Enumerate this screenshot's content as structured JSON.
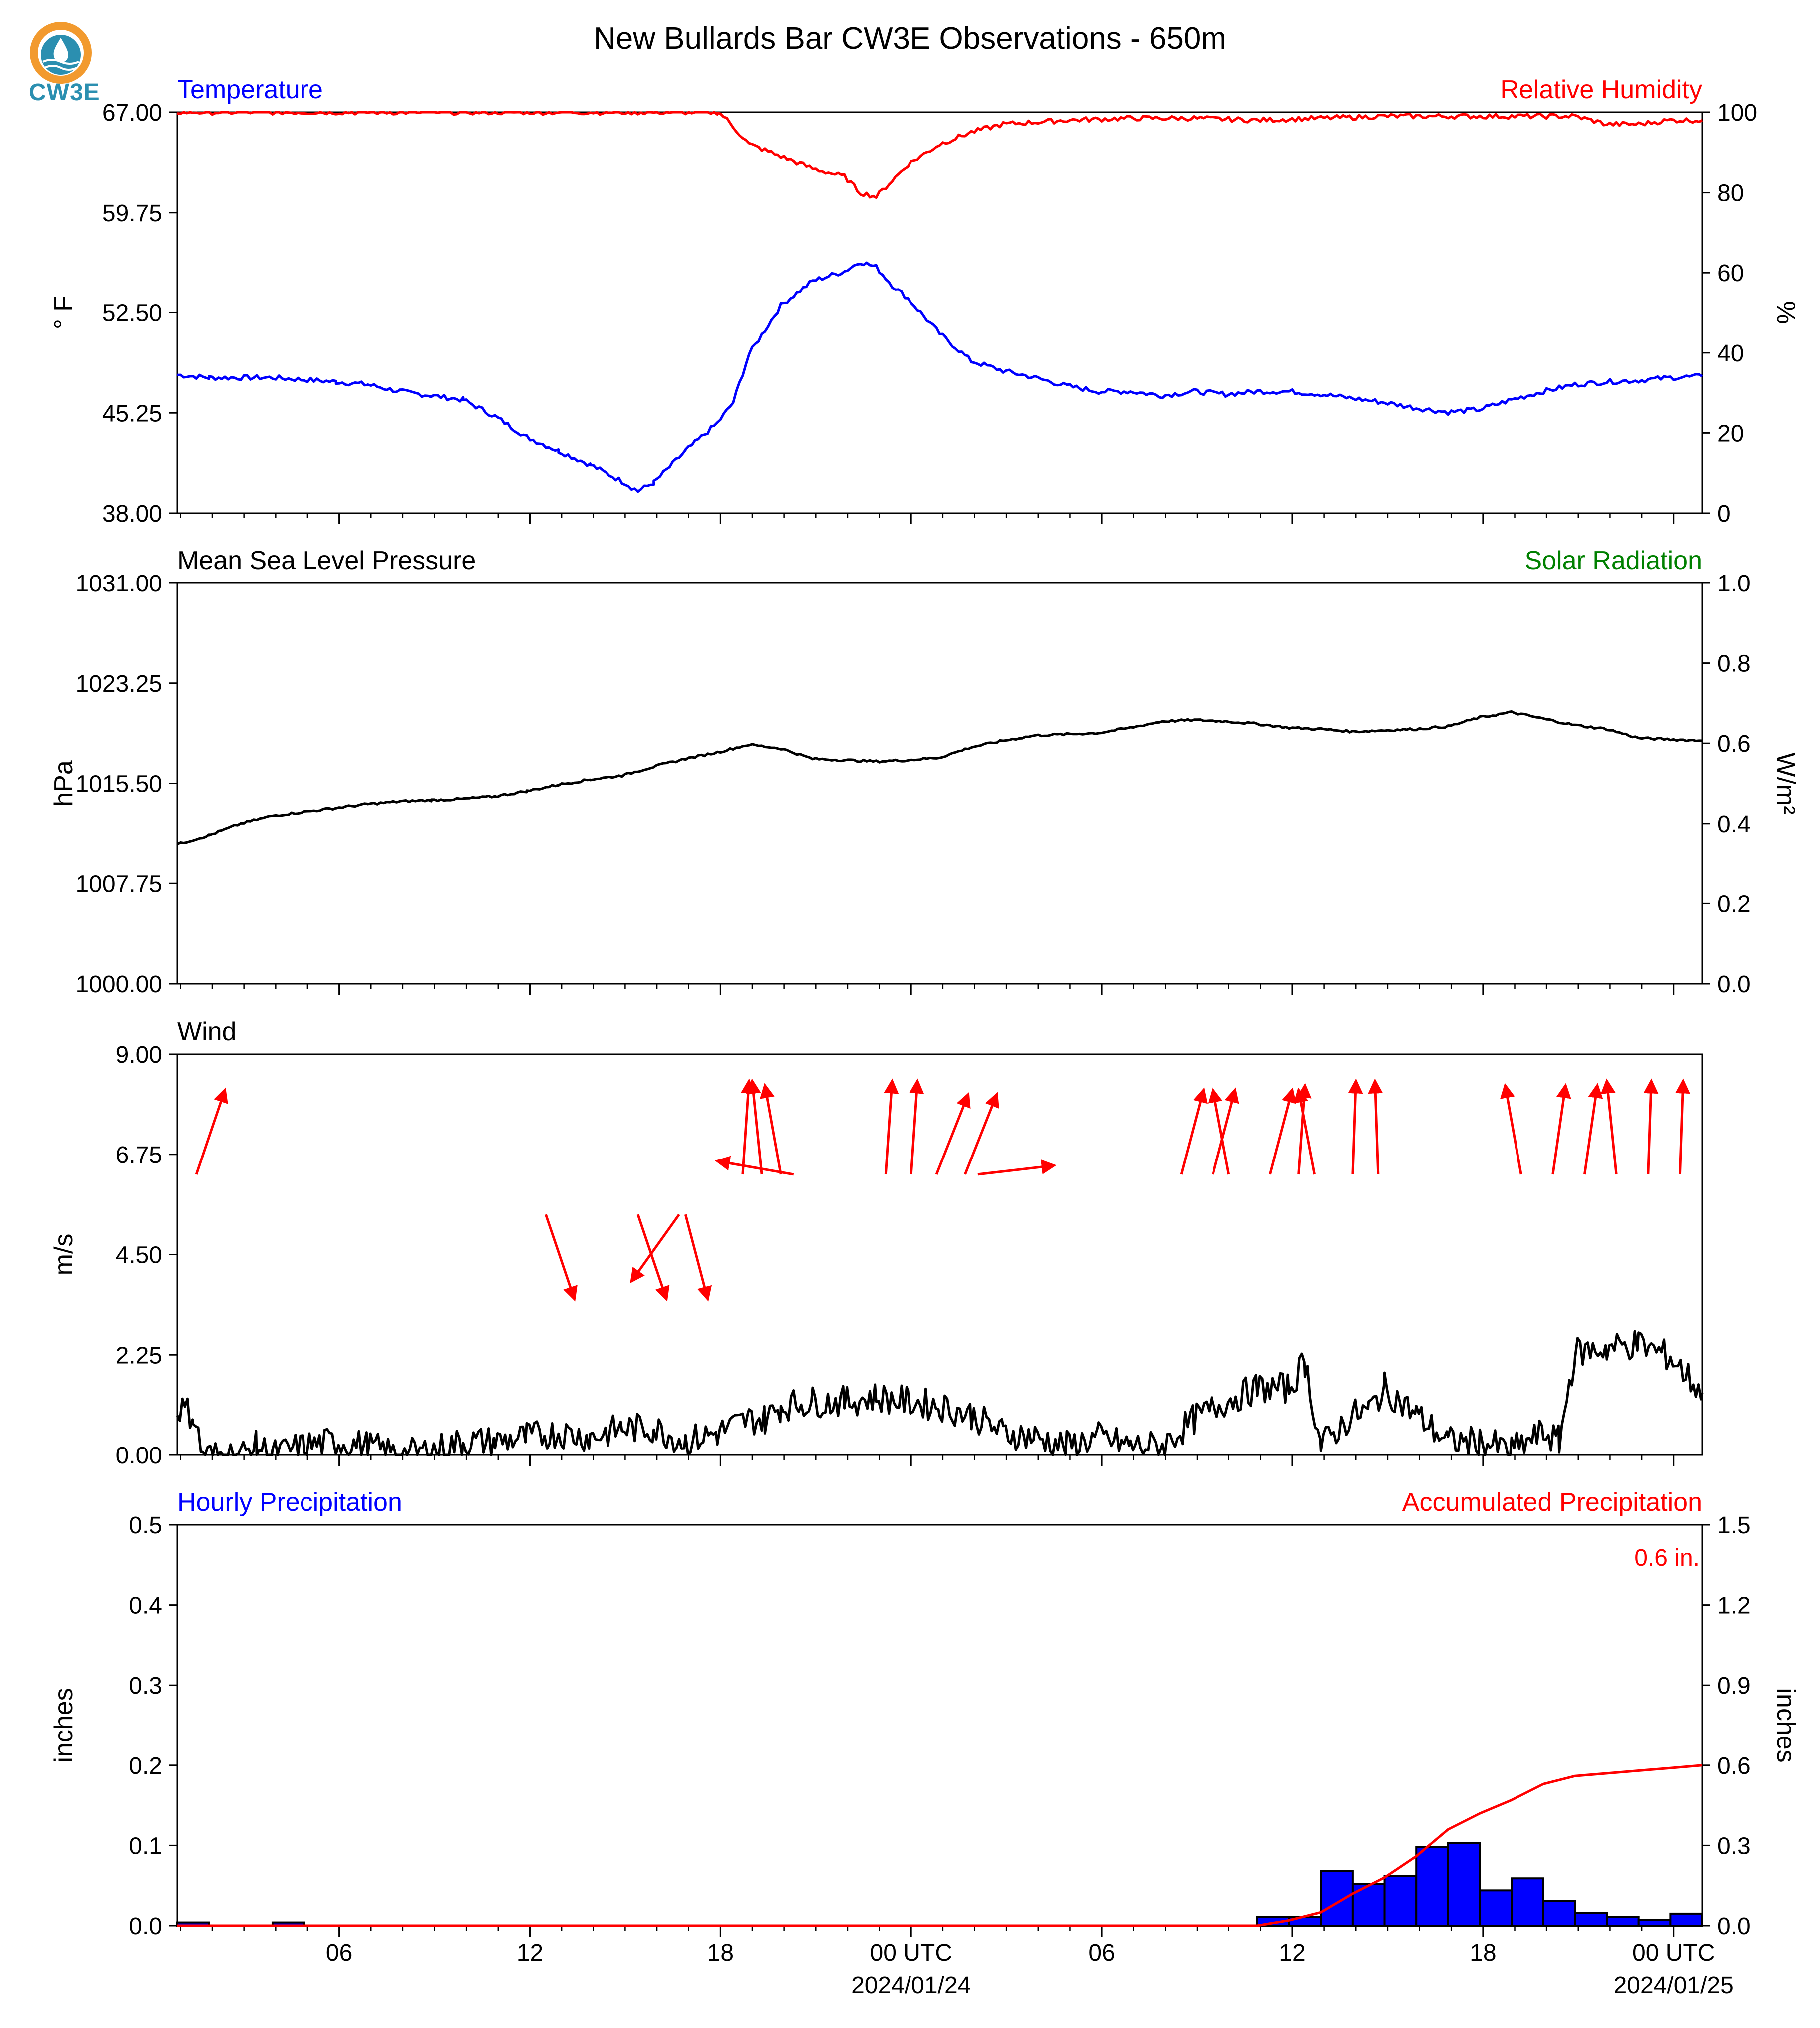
{
  "page_title": "New Bullards Bar CW3E Observations - 650m",
  "logo": {
    "text": "CW3E",
    "icon": "cw3e-water-drop-logo"
  },
  "colors": {
    "blue": "#0000ff",
    "red": "#ff0000",
    "green": "#008000",
    "black": "#000000"
  },
  "time_axis": {
    "tick_labels": [
      "06",
      "12",
      "18",
      "00 UTC",
      "06",
      "12",
      "18",
      "00 UTC"
    ],
    "date_labels": [
      "2024/01/24",
      "2024/01/25"
    ],
    "hours_from_start_of_data": [
      5.1,
      11.1,
      17.1,
      23.1,
      29.1,
      35.1,
      41.1,
      47.1
    ],
    "span_hours": 48
  },
  "chart_data": [
    {
      "type": "line",
      "panel": "temperature-humidity",
      "left_title": "Temperature",
      "right_title": "Relative Humidity",
      "ylabel": "° F",
      "ylim": [
        38.0,
        67.0
      ],
      "yticks": [
        "38.00",
        "45.25",
        "52.50",
        "59.75",
        "67.00"
      ],
      "ylabel_right": "%",
      "ylim_right": [
        0,
        100
      ],
      "yticks_right": [
        "0",
        "20",
        "40",
        "60",
        "80",
        "100"
      ],
      "series": [
        {
          "axis": "left",
          "color": "#0000ff",
          "x": [
            0,
            1,
            3,
            5,
            6,
            7,
            8,
            9,
            10,
            11,
            12,
            13,
            14,
            14.5,
            15,
            16,
            17,
            17.5,
            18,
            19,
            20,
            21,
            21.5,
            22,
            22.5,
            23,
            24,
            25,
            26,
            27,
            28,
            29,
            30,
            31,
            32,
            33,
            34,
            35,
            36,
            37,
            38,
            39,
            40,
            41,
            42,
            43,
            44,
            45,
            46,
            47,
            48
          ],
          "y": [
            48.0,
            47.8,
            47.8,
            47.5,
            47.3,
            46.8,
            46.5,
            46.2,
            45.0,
            43.5,
            42.5,
            41.5,
            40.3,
            39.6,
            40.2,
            42.5,
            44.5,
            46.0,
            49.5,
            53.0,
            54.8,
            55.5,
            56.2,
            55.8,
            54.5,
            53.5,
            51.0,
            49.0,
            48.3,
            47.8,
            47.2,
            46.8,
            46.8,
            46.5,
            46.8,
            46.6,
            46.8,
            46.8,
            46.6,
            46.3,
            46.0,
            45.6,
            45.3,
            45.5,
            46.2,
            46.8,
            47.3,
            47.5,
            47.6,
            47.8,
            47.9
          ]
        },
        {
          "axis": "right",
          "color": "#ff0000",
          "x": [
            0,
            17,
            17.2,
            18,
            19,
            20,
            21,
            21.5,
            22,
            22.5,
            23,
            24,
            25,
            26,
            28,
            30,
            32,
            34,
            36,
            38,
            40,
            42,
            44,
            45,
            46,
            47,
            48
          ],
          "y": [
            100,
            100,
            99,
            92,
            89,
            86,
            84,
            80,
            79,
            83,
            87,
            92,
            95,
            97,
            98,
            98.5,
            98.5,
            98,
            98.5,
            99,
            99,
            99,
            99,
            97,
            97,
            98,
            98
          ]
        }
      ]
    },
    {
      "type": "line",
      "panel": "pressure-solar",
      "left_title": "Mean Sea Level Pressure",
      "right_title": "Solar Radiation",
      "ylabel": "hPa",
      "ylim": [
        1000.0,
        1031.0
      ],
      "yticks": [
        "1000.00",
        "1007.75",
        "1015.50",
        "1023.25",
        "1031.00"
      ],
      "ylabel_right": "W/m²",
      "ylim_right": [
        0.0,
        1.0
      ],
      "yticks_right": [
        "0.0",
        "0.2",
        "0.4",
        "0.6",
        "0.8",
        "1.0"
      ],
      "series": [
        {
          "axis": "left",
          "color": "#000000",
          "x": [
            0,
            1,
            2,
            3,
            4,
            5,
            6,
            7,
            8,
            9,
            10,
            11,
            12,
            13,
            14,
            15,
            16,
            17,
            18,
            19,
            20,
            21,
            22,
            23,
            24,
            25,
            26,
            27,
            28,
            29,
            30,
            31,
            32,
            33,
            34,
            35,
            36,
            37,
            38,
            39,
            40,
            41,
            42,
            43,
            44,
            45,
            46,
            47,
            48
          ],
          "y": [
            1010.8,
            1011.5,
            1012.4,
            1013.0,
            1013.3,
            1013.6,
            1013.9,
            1014.1,
            1014.2,
            1014.3,
            1014.5,
            1014.9,
            1015.4,
            1015.8,
            1016.1,
            1016.8,
            1017.4,
            1017.9,
            1018.5,
            1018.2,
            1017.4,
            1017.3,
            1017.2,
            1017.3,
            1017.5,
            1018.3,
            1018.8,
            1019.2,
            1019.3,
            1019.4,
            1019.8,
            1020.3,
            1020.4,
            1020.3,
            1020.1,
            1019.8,
            1019.7,
            1019.5,
            1019.6,
            1019.7,
            1019.9,
            1020.6,
            1021.0,
            1020.5,
            1020.0,
            1019.7,
            1019.0,
            1018.9,
            1018.8
          ]
        }
      ]
    },
    {
      "type": "line",
      "panel": "wind",
      "left_title": "Wind",
      "ylabel": "m/s",
      "ylim": [
        0.0,
        9.0
      ],
      "yticks": [
        "0.00",
        "2.25",
        "4.50",
        "6.75",
        "9.00"
      ],
      "series": [
        {
          "axis": "left",
          "color": "#000000",
          "x": [
            0,
            0.5,
            0.8,
            2,
            2.5,
            3,
            4,
            5,
            6,
            7,
            8,
            9,
            10,
            11,
            12,
            13,
            14,
            15,
            16,
            17,
            18,
            18.5,
            19,
            20,
            21,
            22,
            23,
            24,
            25,
            26,
            27,
            28,
            29,
            30,
            31,
            32,
            33,
            34,
            35,
            35.5,
            36,
            37,
            37.5,
            38,
            39,
            40,
            41,
            42,
            43,
            43.5,
            44,
            45,
            46,
            47,
            48
          ],
          "y": [
            1.1,
            0.9,
            0.0,
            0.0,
            0.2,
            0.0,
            0.2,
            0.3,
            0.2,
            0.0,
            0.1,
            0.3,
            0.3,
            0.4,
            0.5,
            0.4,
            0.6,
            0.6,
            0.3,
            0.5,
            0.8,
            0.8,
            1.1,
            1.2,
            1.2,
            1.3,
            1.2,
            1.1,
            0.9,
            0.5,
            0.4,
            0.2,
            0.4,
            0.2,
            0.2,
            0.8,
            1.2,
            1.5,
            1.5,
            2.1,
            0.2,
            0.9,
            1.0,
            1.5,
            0.9,
            0.3,
            0.3,
            0.1,
            0.5,
            0.3,
            2.3,
            2.4,
            2.5,
            2.2,
            1.4
          ]
        }
      ],
      "wind_arrows": [
        {
          "x": 0.6,
          "dx": 0.9,
          "dy": 1.9
        },
        {
          "x": 11.6,
          "dx": 0.9,
          "dy": -1.9
        },
        {
          "x": 14.5,
          "dx": 0.9,
          "dy": -1.9
        },
        {
          "x": 15.8,
          "dx": -1.5,
          "dy": -1.5
        },
        {
          "x": 16.0,
          "dx": 0.7,
          "dy": -1.9
        },
        {
          "x": 17.8,
          "dx": 0.2,
          "dy": 2.1
        },
        {
          "x": 18.4,
          "dx": -0.3,
          "dy": 2.1
        },
        {
          "x": 19.0,
          "dx": -0.5,
          "dy": 2.0
        },
        {
          "x": 19.4,
          "dx": -2.4,
          "dy": 0.3
        },
        {
          "x": 22.3,
          "dx": 0.2,
          "dy": 2.1
        },
        {
          "x": 23.1,
          "dx": 0.2,
          "dy": 2.1
        },
        {
          "x": 23.9,
          "dx": 1.0,
          "dy": 1.8
        },
        {
          "x": 24.8,
          "dx": 1.0,
          "dy": 1.8
        },
        {
          "x": 25.2,
          "dx": 2.4,
          "dy": 0.2
        },
        {
          "x": 31.6,
          "dx": 0.7,
          "dy": 1.9
        },
        {
          "x": 32.6,
          "dx": 0.7,
          "dy": 1.9
        },
        {
          "x": 33.1,
          "dx": -0.5,
          "dy": 1.9
        },
        {
          "x": 34.4,
          "dx": 0.7,
          "dy": 1.9
        },
        {
          "x": 35.3,
          "dx": 0.2,
          "dy": 2.0
        },
        {
          "x": 35.8,
          "dx": -0.5,
          "dy": 1.9
        },
        {
          "x": 37.0,
          "dx": 0.1,
          "dy": 2.1
        },
        {
          "x": 37.8,
          "dx": -0.1,
          "dy": 2.1
        },
        {
          "x": 42.3,
          "dx": -0.5,
          "dy": 2.0
        },
        {
          "x": 43.3,
          "dx": 0.4,
          "dy": 2.0
        },
        {
          "x": 44.3,
          "dx": 0.4,
          "dy": 2.0
        },
        {
          "x": 45.3,
          "dx": -0.3,
          "dy": 2.1
        },
        {
          "x": 46.3,
          "dx": 0.1,
          "dy": 2.1
        },
        {
          "x": 47.3,
          "dx": 0.1,
          "dy": 2.1
        }
      ]
    },
    {
      "type": "bar",
      "panel": "precipitation",
      "left_title": "Hourly Precipitation",
      "right_title": "Accumulated Precipitation",
      "annotation": "0.6 in.",
      "ylabel": "inches",
      "ylim": [
        0.0,
        0.5
      ],
      "yticks": [
        "0.0",
        "0.1",
        "0.2",
        "0.3",
        "0.4",
        "0.5"
      ],
      "ylabel_right": "inches",
      "ylim_right": [
        0.0,
        1.5
      ],
      "yticks_right": [
        "0.0",
        "0.3",
        "0.6",
        "0.9",
        "1.2",
        "1.5"
      ],
      "bars": {
        "hours": [
          0,
          3,
          34,
          35,
          36,
          37,
          38,
          39,
          40,
          41,
          42,
          43,
          44,
          45,
          46,
          47
        ],
        "values": [
          0.004,
          0.004,
          0.011,
          0.011,
          0.068,
          0.052,
          0.062,
          0.098,
          0.103,
          0.044,
          0.059,
          0.031,
          0.016,
          0.011,
          0.007,
          0.015
        ],
        "color": "#0000ff"
      },
      "series": [
        {
          "axis": "right",
          "color": "#ff0000",
          "x": [
            0,
            34,
            35,
            36,
            37,
            38,
            39,
            40,
            41,
            42,
            43,
            44,
            45,
            46,
            47,
            48
          ],
          "y": [
            0.0,
            0.0,
            0.02,
            0.05,
            0.12,
            0.18,
            0.26,
            0.36,
            0.42,
            0.47,
            0.53,
            0.56,
            0.57,
            0.58,
            0.59,
            0.6
          ]
        }
      ]
    }
  ]
}
